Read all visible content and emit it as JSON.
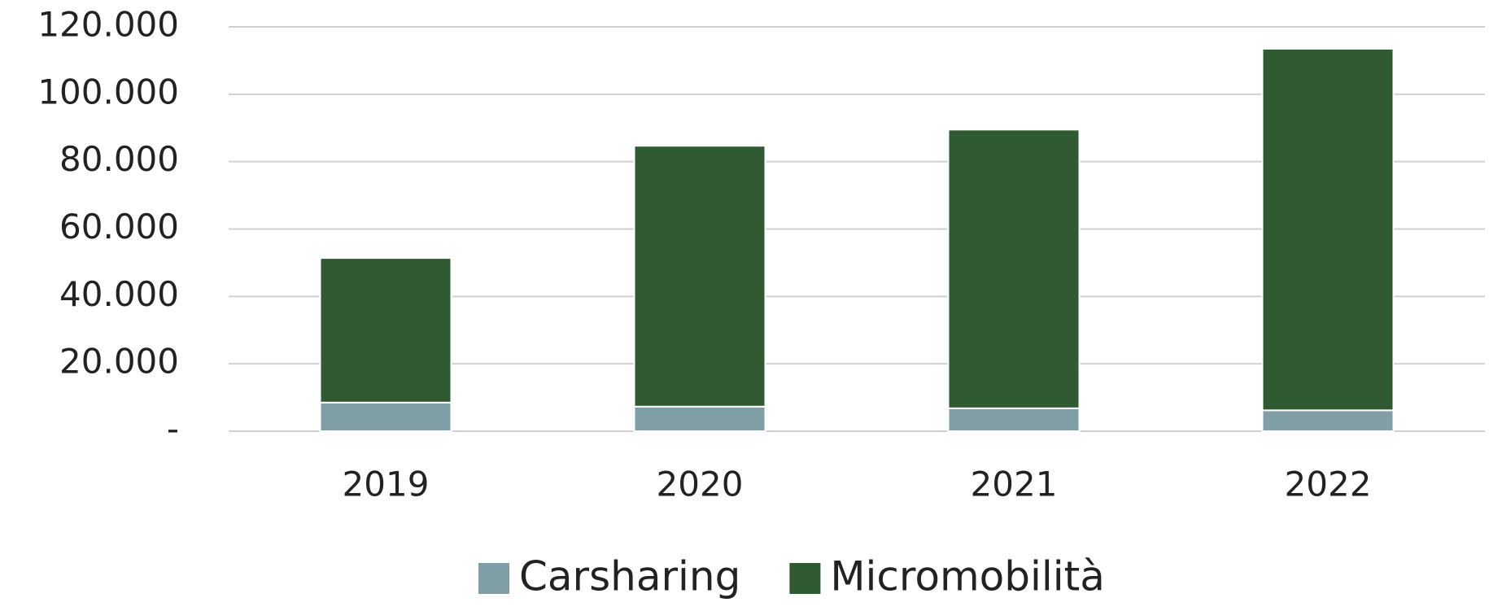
{
  "chart_data": {
    "type": "bar",
    "stacked": true,
    "categories": [
      "2019",
      "2020",
      "2021",
      "2022"
    ],
    "series": [
      {
        "name": "Carsharing",
        "color": "#7f9ea6",
        "values": [
          8500,
          7300,
          6800,
          6200
        ]
      },
      {
        "name": "Micromobilità",
        "color": "#2f5a32",
        "values": [
          42900,
          77400,
          82700,
          107300
        ]
      }
    ],
    "ylim": [
      0,
      120000
    ],
    "yticks": [
      {
        "value": 0,
        "label": "-"
      },
      {
        "value": 20000,
        "label": "20.000"
      },
      {
        "value": 40000,
        "label": "40.000"
      },
      {
        "value": 60000,
        "label": "60.000"
      },
      {
        "value": 80000,
        "label": "80.000"
      },
      {
        "value": 100000,
        "label": "100.000"
      },
      {
        "value": 120000,
        "label": "120.000"
      }
    ],
    "grid": true,
    "legend": "bottom"
  }
}
